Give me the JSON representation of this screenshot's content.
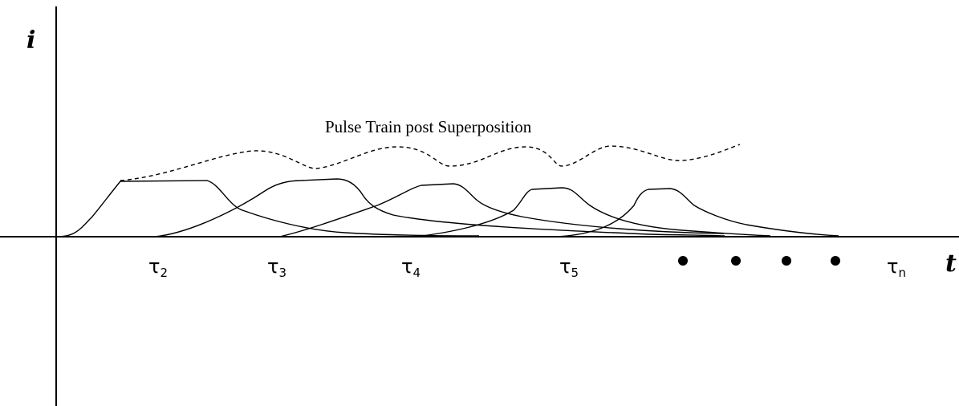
{
  "axes": {
    "y_label": "i",
    "x_label": "t"
  },
  "caption": "Pulse Train post Superposition",
  "tau_labels": [
    {
      "base": "τ",
      "sub": "2"
    },
    {
      "base": "τ",
      "sub": "3"
    },
    {
      "base": "τ",
      "sub": "4"
    },
    {
      "base": "τ",
      "sub": "5"
    },
    {
      "base": "τ",
      "sub": "n"
    }
  ],
  "ellipsis_dot_count": 4,
  "pulse_count": 5,
  "colors": {
    "ink": "#000000",
    "background": "#ffffff"
  }
}
